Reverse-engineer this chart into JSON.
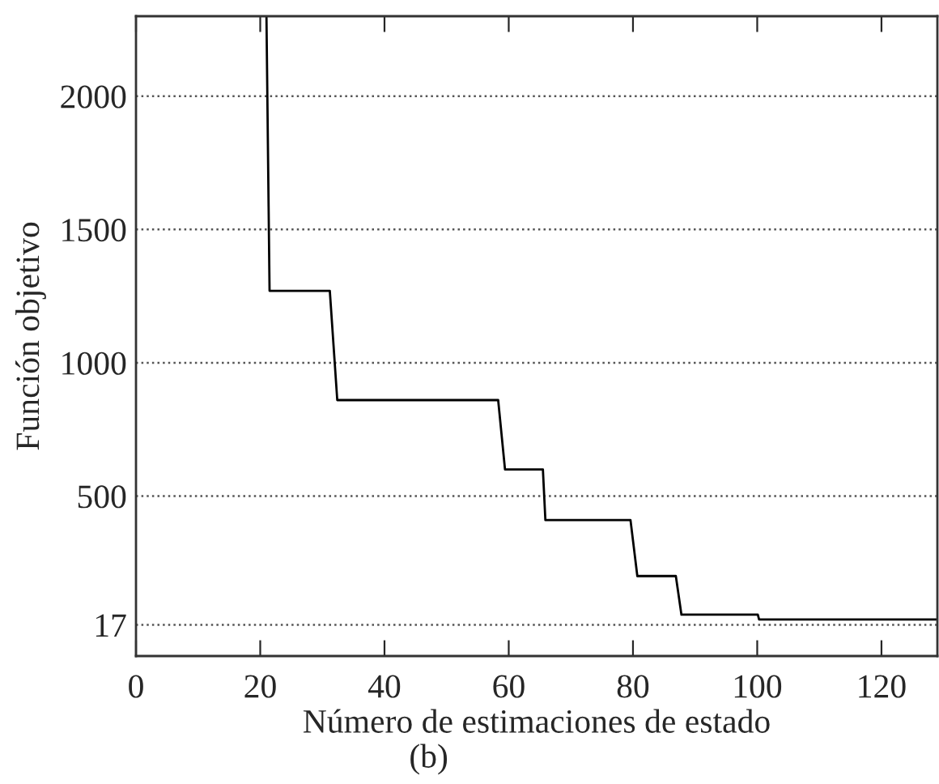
{
  "chart_data": {
    "type": "line",
    "xlabel": "Número de estimaciones de estado",
    "ylabel": "Función objetivo",
    "annotations": [
      "(b)"
    ],
    "series": [
      {
        "color": "#000000",
        "x": [
          21,
          21.5,
          31.2,
          32.4,
          58.3,
          59.4,
          65.5,
          65.9,
          79.6,
          80.7,
          86.9,
          87.8,
          100.1,
          100.3,
          129
        ],
        "values": [
          2300,
          1270,
          1270,
          860,
          860,
          600,
          600,
          410,
          410,
          200,
          200,
          55,
          55,
          37,
          37
        ]
      }
    ],
    "xlim": [
      0,
      129
    ],
    "xticks": [
      0,
      20,
      40,
      60,
      80,
      100,
      120
    ],
    "ylim": [
      -100,
      2300
    ],
    "yticks": [
      17,
      500,
      1000,
      1500,
      2000
    ],
    "grid": "y",
    "line_style": "solid",
    "marker": "none",
    "legend": false
  }
}
